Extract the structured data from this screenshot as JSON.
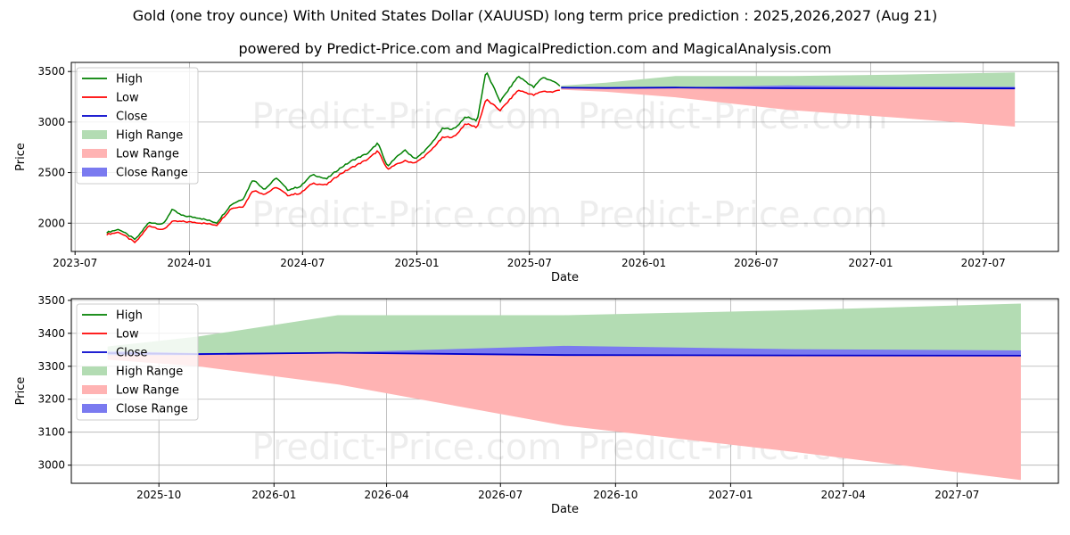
{
  "header": {
    "title": "Gold (one troy ounce) With United States Dollar (XAUUSD) long term price prediction : 2025,2026,2027 (Aug 21)",
    "subtitle": "powered by Predict-Price.com and MagicalPrediction.com and MagicalAnalysis.com"
  },
  "watermark": "Predict-Price.com",
  "colors": {
    "high": "#008000",
    "low": "#ff0000",
    "close": "#0000cc",
    "high_range": "#b3dcb3",
    "low_range": "#ffb3b3",
    "close_range": "#7a7af0",
    "grid": "#b0b0b0"
  },
  "chart_data": [
    {
      "type": "line",
      "panel": "full history and forecast",
      "xlabel": "Date",
      "ylabel": "Price",
      "xlim": [
        "2023-06-25",
        "2027-10-30"
      ],
      "ylim": [
        1720,
        3590
      ],
      "x_ticks": [
        "2023-07",
        "2024-01",
        "2024-07",
        "2025-01",
        "2025-07",
        "2026-01",
        "2026-07",
        "2027-01",
        "2027-07"
      ],
      "y_ticks": [
        2000,
        2500,
        3000,
        3500
      ],
      "grid": true,
      "legend": {
        "placement": "top-left",
        "entries": [
          "High",
          "Low",
          "Close",
          "High Range",
          "Low Range",
          "Close Range"
        ]
      },
      "history": {
        "dates": [
          "2023-08-21",
          "2023-09-10",
          "2023-10-06",
          "2023-10-28",
          "2023-11-20",
          "2023-12-04",
          "2023-12-20",
          "2024-01-15",
          "2024-02-14",
          "2024-03-08",
          "2024-03-28",
          "2024-04-12",
          "2024-05-01",
          "2024-05-20",
          "2024-06-07",
          "2024-06-28",
          "2024-07-17",
          "2024-08-08",
          "2024-08-28",
          "2024-09-20",
          "2024-10-15",
          "2024-10-30",
          "2024-11-14",
          "2024-12-12",
          "2024-12-30",
          "2025-01-20",
          "2025-02-11",
          "2025-03-03",
          "2025-03-20",
          "2025-04-08",
          "2025-04-22",
          "2025-05-15",
          "2025-06-13",
          "2025-07-08",
          "2025-07-22",
          "2025-08-08",
          "2025-08-21"
        ],
        "high": [
          1905,
          1935,
          1832,
          2005,
          1985,
          2130,
          2070,
          2050,
          2000,
          2180,
          2240,
          2430,
          2330,
          2445,
          2325,
          2360,
          2480,
          2430,
          2530,
          2620,
          2690,
          2790,
          2560,
          2720,
          2630,
          2750,
          2930,
          2930,
          3050,
          3010,
          3500,
          3200,
          3450,
          3340,
          3440,
          3400,
          3350
        ],
        "low": [
          1893,
          1915,
          1810,
          1980,
          1935,
          2020,
          2020,
          2010,
          1985,
          2150,
          2170,
          2330,
          2290,
          2360,
          2280,
          2300,
          2400,
          2380,
          2480,
          2560,
          2640,
          2720,
          2540,
          2620,
          2600,
          2700,
          2850,
          2860,
          2990,
          2950,
          3230,
          3120,
          3320,
          3270,
          3310,
          3300,
          3330
        ],
        "close": [
          1898,
          1922,
          1818,
          1990,
          1950,
          2060,
          2040,
          2030,
          1992,
          2165,
          2200,
          2370,
          2310,
          2400,
          2300,
          2330,
          2440,
          2400,
          2505,
          2600,
          2670,
          2750,
          2560,
          2650,
          2615,
          2730,
          2900,
          2880,
          3020,
          2980,
          3320,
          3180,
          3380,
          3330,
          3380,
          3350,
          3340
        ]
      },
      "forecast": {
        "dates": [
          "2025-08-21",
          "2025-11-01",
          "2026-02-21",
          "2026-08-21",
          "2027-02-21",
          "2027-08-21"
        ],
        "high_upper": [
          3360,
          3390,
          3455,
          3455,
          3470,
          3490
        ],
        "low_lower": [
          3320,
          3300,
          3245,
          3120,
          3040,
          2955
        ],
        "close_upper": [
          3346,
          3340,
          3342,
          3362,
          3352,
          3348
        ],
        "close_lower": [
          3334,
          3334,
          3340,
          3333,
          3333,
          3332
        ],
        "close": [
          3340,
          3337,
          3341,
          3334,
          3333,
          3332
        ]
      }
    },
    {
      "type": "line",
      "panel": "forecast detail",
      "xlabel": "Date",
      "ylabel": "Price",
      "xlim": [
        "2025-07-23",
        "2027-09-20"
      ],
      "ylim": [
        2945,
        3505
      ],
      "x_ticks": [
        "2025-10",
        "2026-01",
        "2026-04",
        "2026-07",
        "2026-10",
        "2027-01",
        "2027-04",
        "2027-07"
      ],
      "y_ticks": [
        3000,
        3100,
        3200,
        3300,
        3400,
        3500
      ],
      "grid": true,
      "legend": {
        "placement": "top-left",
        "entries": [
          "High",
          "Low",
          "Close",
          "High Range",
          "Low Range",
          "Close Range"
        ]
      },
      "forecast": {
        "dates": [
          "2025-08-21",
          "2025-11-01",
          "2026-02-21",
          "2026-08-21",
          "2027-02-21",
          "2027-08-21"
        ],
        "high_upper": [
          3360,
          3390,
          3455,
          3455,
          3470,
          3490
        ],
        "low_lower": [
          3320,
          3300,
          3245,
          3120,
          3040,
          2955
        ],
        "close_upper": [
          3346,
          3340,
          3342,
          3362,
          3352,
          3348
        ],
        "close_lower": [
          3334,
          3334,
          3340,
          3333,
          3333,
          3332
        ],
        "close": [
          3340,
          3337,
          3341,
          3334,
          3333,
          3332
        ]
      }
    }
  ]
}
